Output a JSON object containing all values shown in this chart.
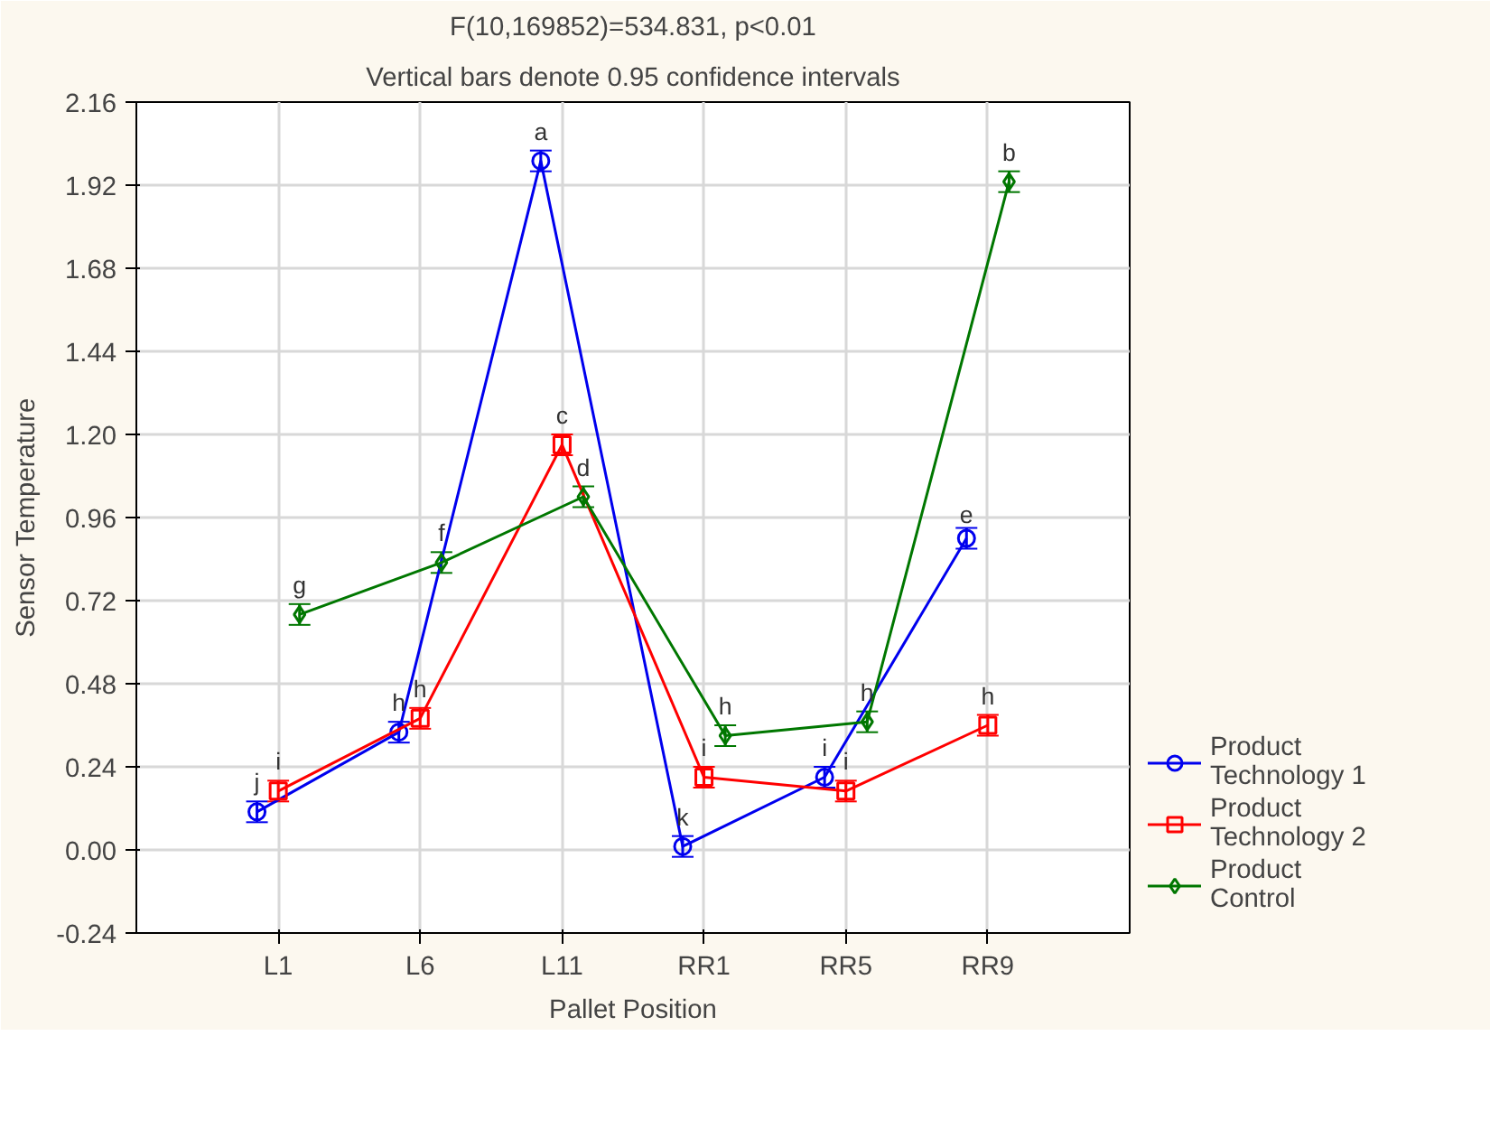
{
  "chart_data": {
    "type": "line",
    "title": "F(10,169852)=534.831, p<0.01",
    "subtitle": "Vertical bars denote 0.95 confidence intervals",
    "xlabel": "Pallet Position",
    "ylabel": "Sensor Temperature",
    "categories": [
      "L1",
      "L6",
      "L11",
      "RR1",
      "RR5",
      "RR9"
    ],
    "ylim": [
      -0.24,
      2.16
    ],
    "yticks": [
      {
        "value": -0.24,
        "label": "-0.24"
      },
      {
        "value": 0,
        "label": "0.00"
      },
      {
        "value": 0.24,
        "label": "0.24"
      },
      {
        "value": 0.48,
        "label": "0.48"
      },
      {
        "value": 0.72,
        "label": "0.72"
      },
      {
        "value": 0.96,
        "label": "0.96"
      },
      {
        "value": 1.2,
        "label": "1.20"
      },
      {
        "value": 1.44,
        "label": "1.44"
      },
      {
        "value": 1.68,
        "label": "1.68"
      },
      {
        "value": 1.92,
        "label": "1.92"
      },
      {
        "value": 2.16,
        "label": "2.16"
      }
    ],
    "grid": true,
    "legend": "bottom right",
    "series": [
      {
        "name": "Product Technology 1",
        "color": "#0000ee",
        "marker": "circle",
        "values": [
          0.11,
          0.34,
          1.99,
          0.01,
          0.21,
          0.9
        ],
        "errors": [
          0.03,
          0.03,
          0.03,
          0.03,
          0.03,
          0.03
        ]
      },
      {
        "name": "Product Technology 2",
        "color": "#ff0000",
        "marker": "square",
        "values": [
          0.17,
          0.38,
          1.17,
          0.21,
          0.17,
          0.36
        ],
        "errors": [
          0.03,
          0.03,
          0.03,
          0.03,
          0.03,
          0.03
        ]
      },
      {
        "name": "Product Control",
        "color": "#007700",
        "marker": "diamond",
        "values": [
          0.68,
          0.83,
          1.02,
          0.33,
          0.37,
          1.93
        ],
        "errors": [
          0.03,
          0.03,
          0.03,
          0.03,
          0.03,
          0.03
        ]
      }
    ],
    "annotations": [
      "j",
      "h",
      "a",
      "k",
      "i",
      "e",
      "i",
      "h",
      "c",
      "i",
      "i",
      "h",
      "g",
      "f",
      "d",
      "h",
      "h",
      "b"
    ]
  }
}
